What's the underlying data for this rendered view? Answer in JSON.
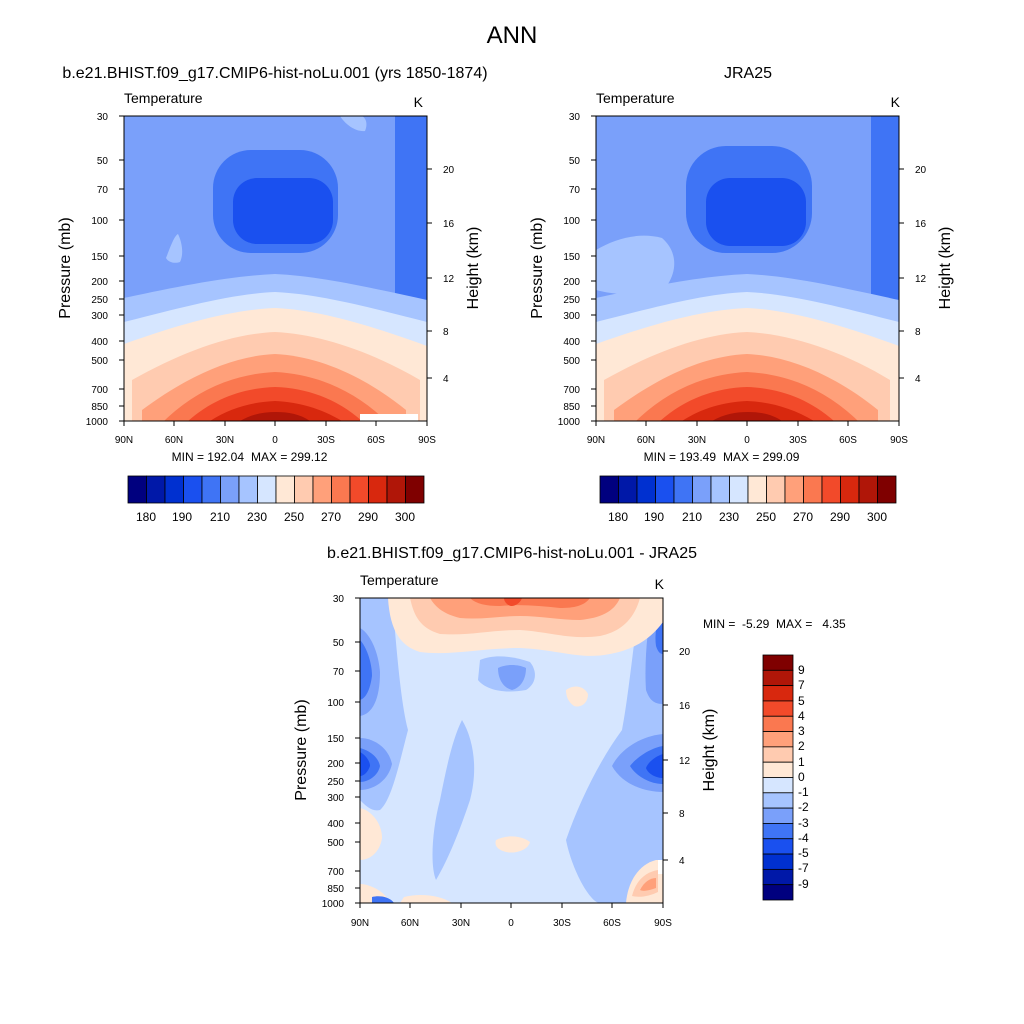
{
  "figure": {
    "title": "ANN"
  },
  "colors": {
    "abs_palette": [
      "#00007f",
      "#0018a8",
      "#0030d0",
      "#1a50ef",
      "#3f74f5",
      "#7aa0fa",
      "#a6c4ff",
      "#d6e6ff",
      "#ffe8d6",
      "#ffcbb0",
      "#ffa07a",
      "#fa7850",
      "#f24a2a",
      "#d8280e",
      "#b01608",
      "#7f0000"
    ],
    "diff_palette": [
      "#00007f",
      "#0018a8",
      "#0030d0",
      "#1a50ef",
      "#3f74f5",
      "#7aa0fa",
      "#a6c4ff",
      "#d6e6ff",
      "#ffe8d6",
      "#ffcbb0",
      "#ffa07a",
      "#fa7850",
      "#f24a2a",
      "#d8280e",
      "#b01608",
      "#7f0000"
    ]
  },
  "chart_data": [
    {
      "type": "contour",
      "panel": "model",
      "title": "b.e21.BHIST.f09_g17.CMIP6-hist-noLu.001 (yrs 1850-1874)",
      "variable": "Temperature",
      "units": "K",
      "ylabel": "Pressure (mb)",
      "ylabel_right": "Height (km)",
      "x_ticks": [
        "90N",
        "60N",
        "30N",
        "0",
        "30S",
        "60S",
        "90S"
      ],
      "y_ticks": [
        "30",
        "50",
        "70",
        "100",
        "150",
        "200",
        "250",
        "300",
        "400",
        "500",
        "700",
        "850",
        "1000"
      ],
      "y_ticks_right": [
        "20",
        "16",
        "12",
        "8",
        "4"
      ],
      "xlim": [
        90,
        -90
      ],
      "ylim": [
        1000,
        30
      ],
      "min_label": "MIN = 192.04",
      "max_label": "MAX = 299.12",
      "min": 192.04,
      "max": 299.12,
      "colorbar_labels": [
        "180",
        "190",
        "210",
        "230",
        "250",
        "270",
        "290",
        "300"
      ],
      "colorbar_levels": [
        180,
        185,
        190,
        200,
        210,
        220,
        230,
        240,
        250,
        260,
        270,
        280,
        290,
        295,
        300
      ]
    },
    {
      "type": "contour",
      "panel": "obs",
      "title": "JRA25",
      "variable": "Temperature",
      "units": "K",
      "ylabel": "Pressure (mb)",
      "ylabel_right": "Height (km)",
      "x_ticks": [
        "90N",
        "60N",
        "30N",
        "0",
        "30S",
        "60S",
        "90S"
      ],
      "y_ticks": [
        "30",
        "50",
        "70",
        "100",
        "150",
        "200",
        "250",
        "300",
        "400",
        "500",
        "700",
        "850",
        "1000"
      ],
      "y_ticks_right": [
        "20",
        "16",
        "12",
        "8",
        "4"
      ],
      "xlim": [
        90,
        -90
      ],
      "ylim": [
        1000,
        30
      ],
      "min_label": "MIN = 193.49",
      "max_label": "MAX = 299.09",
      "min": 193.49,
      "max": 299.09,
      "colorbar_labels": [
        "180",
        "190",
        "210",
        "230",
        "250",
        "270",
        "290",
        "300"
      ],
      "colorbar_levels": [
        180,
        185,
        190,
        200,
        210,
        220,
        230,
        240,
        250,
        260,
        270,
        280,
        290,
        295,
        300
      ]
    },
    {
      "type": "contour",
      "panel": "diff",
      "title": "b.e21.BHIST.f09_g17.CMIP6-hist-noLu.001 - JRA25",
      "variable": "Temperature",
      "units": "K",
      "ylabel": "Pressure (mb)",
      "ylabel_right": "Height (km)",
      "x_ticks": [
        "90N",
        "60N",
        "30N",
        "0",
        "30S",
        "60S",
        "90S"
      ],
      "y_ticks": [
        "30",
        "50",
        "70",
        "100",
        "150",
        "200",
        "250",
        "300",
        "400",
        "500",
        "700",
        "850",
        "1000"
      ],
      "y_ticks_right": [
        "20",
        "16",
        "12",
        "8",
        "4"
      ],
      "xlim": [
        90,
        -90
      ],
      "ylim": [
        1000,
        30
      ],
      "minmax_label": "MIN =  -5.29  MAX =   4.35",
      "min": -5.29,
      "max": 4.35,
      "colorbar_labels": [
        "9",
        "7",
        "5",
        "4",
        "3",
        "2",
        "1",
        "0",
        "-1",
        "-2",
        "-3",
        "-4",
        "-5",
        "-7",
        "-9"
      ],
      "colorbar_levels": [
        9,
        7,
        5,
        4,
        3,
        2,
        1,
        0,
        -1,
        -2,
        -3,
        -4,
        -5,
        -7,
        -9
      ]
    }
  ]
}
